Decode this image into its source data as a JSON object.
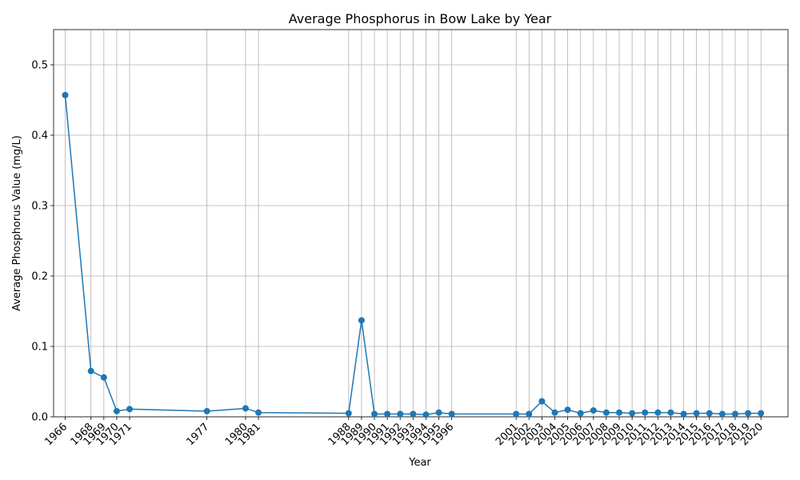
{
  "chart_data": {
    "type": "line",
    "title": "Average Phosphorus in Bow Lake by Year",
    "xlabel": "Year",
    "ylabel": "Average Phosphorus Value (mg/L)",
    "xlim": [
      1965.1,
      2022.1
    ],
    "ylim": [
      0,
      0.55
    ],
    "yticks": [
      0.0,
      0.1,
      0.2,
      0.3,
      0.4,
      0.5
    ],
    "ytick_labels": [
      "0.0",
      "0.1",
      "0.2",
      "0.3",
      "0.4",
      "0.5"
    ],
    "grid": true,
    "marker": "circle",
    "series": [
      {
        "color": "#1f77b4",
        "x": [
          1966,
          1968,
          1969,
          1970,
          1971,
          1977,
          1980,
          1981,
          1988,
          1989,
          1990,
          1991,
          1992,
          1993,
          1994,
          1995,
          1996,
          2001,
          2002,
          2003,
          2004,
          2005,
          2006,
          2007,
          2008,
          2009,
          2010,
          2011,
          2012,
          2013,
          2014,
          2015,
          2016,
          2017,
          2018,
          2019,
          2020
        ],
        "y": [
          0.457,
          0.065,
          0.056,
          0.008,
          0.011,
          0.008,
          0.012,
          0.006,
          0.005,
          0.137,
          0.004,
          0.004,
          0.004,
          0.004,
          0.003,
          0.006,
          0.004,
          0.004,
          0.004,
          0.022,
          0.006,
          0.01,
          0.005,
          0.009,
          0.006,
          0.006,
          0.005,
          0.006,
          0.006,
          0.006,
          0.004,
          0.005,
          0.005,
          0.004,
          0.004,
          0.005,
          0.005
        ]
      }
    ],
    "xtick_labels": [
      "1966",
      "1968",
      "1969",
      "1970",
      "1971",
      "1977",
      "1980",
      "1981",
      "1988",
      "1989",
      "1990",
      "1991",
      "1992",
      "1993",
      "1994",
      "1995",
      "1996",
      "2001",
      "2002",
      "2003",
      "2004",
      "2005",
      "2006",
      "2007",
      "2008",
      "2009",
      "2010",
      "2011",
      "2012",
      "2013",
      "2014",
      "2015",
      "2016",
      "2017",
      "2018",
      "2019",
      "2020"
    ]
  }
}
